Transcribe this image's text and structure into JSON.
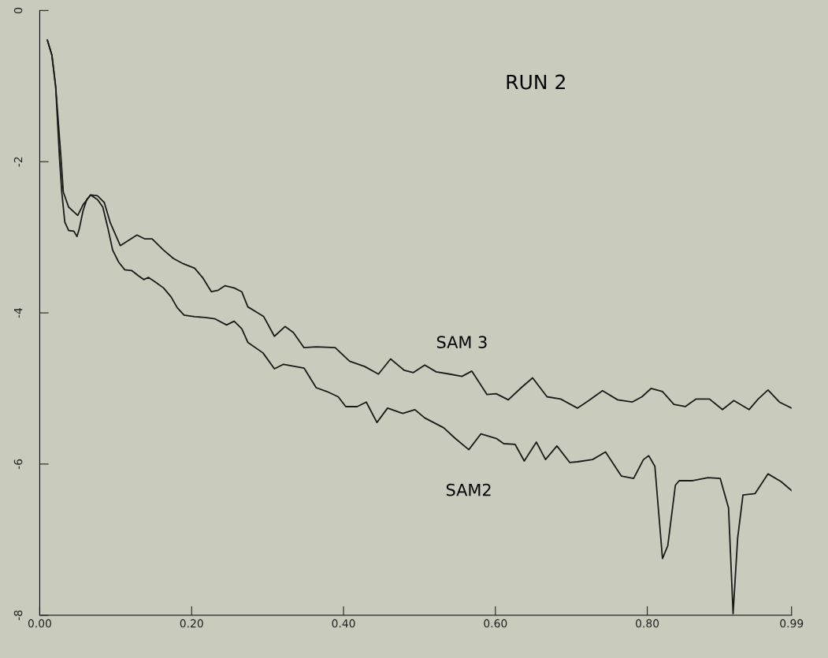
{
  "chart_data": {
    "type": "line",
    "title": "RUN 2",
    "xlim": [
      0,
      0.99
    ],
    "ylim": [
      -8,
      0
    ],
    "xticks": [
      {
        "value": 0,
        "label": "0.00"
      },
      {
        "value": 0.2,
        "label": "0.20"
      },
      {
        "value": 0.4,
        "label": "0.40"
      },
      {
        "value": 0.6,
        "label": "0.60"
      },
      {
        "value": 0.8,
        "label": "0.80"
      },
      {
        "value": 0.99,
        "label": "0.99"
      }
    ],
    "yticks": [
      0,
      -2,
      -4,
      -6,
      -8
    ],
    "grid": false,
    "legend": false,
    "series": [
      {
        "name": "SAM 3",
        "color": "#1a1a1a",
        "x": [
          0.01,
          0.016,
          0.021,
          0.028,
          0.031,
          0.038,
          0.05,
          0.057,
          0.067,
          0.076,
          0.085,
          0.093,
          0.106,
          0.117,
          0.128,
          0.138,
          0.148,
          0.163,
          0.176,
          0.189,
          0.204,
          0.215,
          0.226,
          0.235,
          0.244,
          0.256,
          0.266,
          0.274,
          0.287,
          0.295,
          0.309,
          0.323,
          0.334,
          0.348,
          0.364,
          0.389,
          0.408,
          0.428,
          0.446,
          0.462,
          0.48,
          0.492,
          0.507,
          0.522,
          0.54,
          0.556,
          0.569,
          0.589,
          0.601,
          0.617,
          0.634,
          0.649,
          0.668,
          0.686,
          0.708,
          0.723,
          0.741,
          0.761,
          0.78,
          0.793,
          0.805,
          0.82,
          0.835,
          0.85,
          0.864,
          0.882,
          0.899,
          0.914,
          0.934,
          0.946,
          0.959,
          0.974,
          0.99
        ],
        "values": [
          -0.39,
          -0.59,
          -1.01,
          -1.95,
          -2.4,
          -2.6,
          -2.71,
          -2.57,
          -2.44,
          -2.45,
          -2.54,
          -2.81,
          -3.11,
          -3.04,
          -2.97,
          -3.02,
          -3.02,
          -3.17,
          -3.28,
          -3.35,
          -3.41,
          -3.54,
          -3.72,
          -3.7,
          -3.64,
          -3.67,
          -3.72,
          -3.92,
          -4.0,
          -4.05,
          -4.31,
          -4.18,
          -4.26,
          -4.46,
          -4.45,
          -4.46,
          -4.64,
          -4.71,
          -4.81,
          -4.61,
          -4.76,
          -4.79,
          -4.69,
          -4.78,
          -4.81,
          -4.84,
          -4.77,
          -5.08,
          -5.07,
          -5.15,
          -4.99,
          -4.86,
          -5.11,
          -5.14,
          -5.26,
          -5.16,
          -5.03,
          -5.15,
          -5.18,
          -5.11,
          -5.0,
          -5.04,
          -5.21,
          -5.24,
          -5.14,
          -5.14,
          -5.28,
          -5.16,
          -5.28,
          -5.14,
          -5.02,
          -5.18,
          -5.26
        ]
      },
      {
        "name": "SAM2",
        "color": "#1a1a1a",
        "x": [
          0.01,
          0.016,
          0.021,
          0.026,
          0.029,
          0.033,
          0.038,
          0.045,
          0.049,
          0.052,
          0.057,
          0.062,
          0.067,
          0.076,
          0.083,
          0.09,
          0.096,
          0.104,
          0.112,
          0.121,
          0.13,
          0.137,
          0.143,
          0.152,
          0.163,
          0.173,
          0.181,
          0.19,
          0.204,
          0.218,
          0.231,
          0.246,
          0.256,
          0.266,
          0.274,
          0.294,
          0.309,
          0.321,
          0.348,
          0.364,
          0.378,
          0.393,
          0.403,
          0.418,
          0.43,
          0.444,
          0.458,
          0.478,
          0.494,
          0.507,
          0.532,
          0.547,
          0.565,
          0.581,
          0.601,
          0.611,
          0.626,
          0.638,
          0.654,
          0.666,
          0.681,
          0.698,
          0.708,
          0.728,
          0.745,
          0.766,
          0.782,
          0.795,
          0.802,
          0.81,
          0.82,
          0.827,
          0.837,
          0.842,
          0.86,
          0.88,
          0.896,
          0.907,
          0.913,
          0.919,
          0.926,
          0.942,
          0.959,
          0.976,
          0.99
        ],
        "values": [
          -0.39,
          -0.59,
          -1.01,
          -1.95,
          -2.4,
          -2.8,
          -2.91,
          -2.92,
          -2.99,
          -2.89,
          -2.65,
          -2.5,
          -2.44,
          -2.5,
          -2.6,
          -2.89,
          -3.17,
          -3.33,
          -3.43,
          -3.44,
          -3.51,
          -3.56,
          -3.53,
          -3.59,
          -3.67,
          -3.79,
          -3.93,
          -4.03,
          -4.05,
          -4.06,
          -4.08,
          -4.16,
          -4.11,
          -4.21,
          -4.39,
          -4.53,
          -4.74,
          -4.68,
          -4.73,
          -4.99,
          -5.04,
          -5.11,
          -5.24,
          -5.24,
          -5.18,
          -5.45,
          -5.26,
          -5.33,
          -5.28,
          -5.39,
          -5.52,
          -5.66,
          -5.81,
          -5.6,
          -5.66,
          -5.73,
          -5.74,
          -5.96,
          -5.71,
          -5.94,
          -5.76,
          -5.98,
          -5.97,
          -5.94,
          -5.84,
          -6.16,
          -6.19,
          -5.94,
          -5.89,
          -6.03,
          -7.25,
          -7.08,
          -6.28,
          -6.22,
          -6.22,
          -6.18,
          -6.19,
          -6.58,
          -7.98,
          -6.98,
          -6.41,
          -6.39,
          -6.13,
          -6.23,
          -6.35
        ]
      }
    ]
  }
}
